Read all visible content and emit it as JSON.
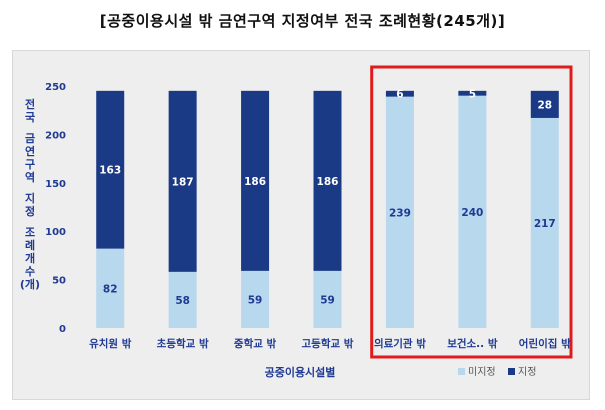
{
  "title": "[공중이용시설 밖 금연구역 지정여부 전국 조례현황(245개)]",
  "chart_data": {
    "type": "bar",
    "stacked": true,
    "categories": [
      "유치원 밖",
      "초등학교 밖",
      "중학교 밖",
      "고등학교 밖",
      "의료기관 밖",
      "보건소.. 밖",
      "어린이집 밖"
    ],
    "series": [
      {
        "name": "미지정",
        "values": [
          82,
          58,
          59,
          59,
          239,
          240,
          217
        ],
        "color": "#b8d8ee"
      },
      {
        "name": "지정",
        "values": [
          163,
          187,
          186,
          186,
          6,
          5,
          28
        ],
        "color": "#1b3a86"
      }
    ],
    "ylim": [
      0,
      250
    ],
    "yticks": [
      0,
      50,
      100,
      150,
      200,
      250
    ],
    "ylabel": [
      "전",
      "국",
      "",
      "금",
      "연",
      "구",
      "역",
      "",
      "지",
      "정",
      "",
      "조",
      "례",
      "개",
      "수",
      "(개)"
    ],
    "xlabel": "공중이용시설별",
    "highlight": {
      "from_index": 4,
      "to_index": 6,
      "color": "#e01b1b"
    },
    "legend_position": "bottom-right"
  }
}
